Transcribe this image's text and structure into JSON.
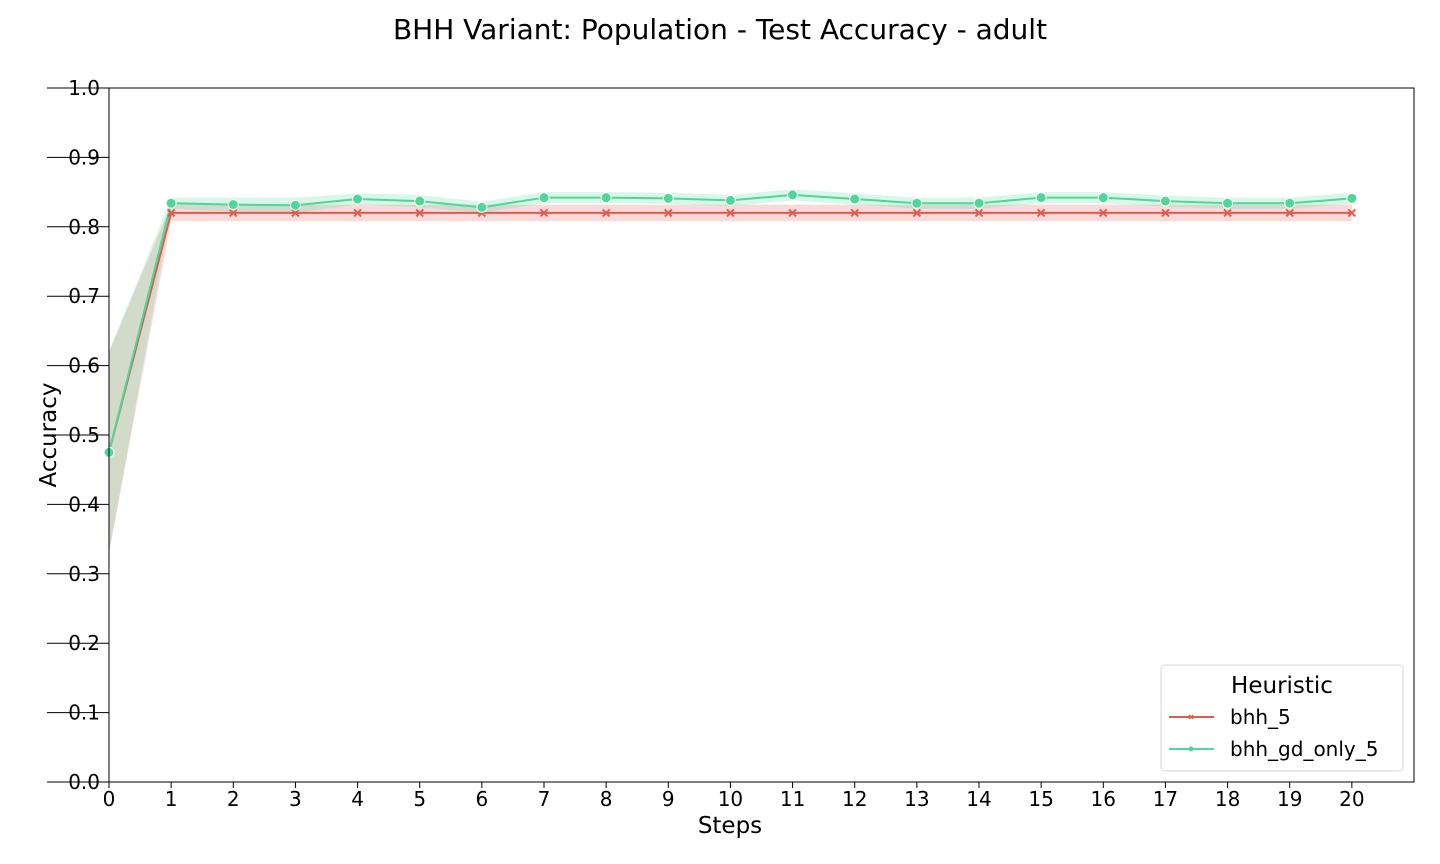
{
  "chart_data": {
    "type": "line",
    "title": "BHH Variant: Population - Test Accuracy - adult",
    "xlabel": "Steps",
    "ylabel": "Accuracy",
    "xlim": [
      0,
      21
    ],
    "ylim": [
      0.0,
      1.0
    ],
    "xticks": [
      "0",
      "1",
      "2",
      "3",
      "4",
      "5",
      "6",
      "7",
      "8",
      "9",
      "10",
      "11",
      "12",
      "13",
      "14",
      "15",
      "16",
      "17",
      "18",
      "19",
      "20"
    ],
    "yticks": [
      "0.0",
      "0.1",
      "0.2",
      "0.3",
      "0.4",
      "0.5",
      "0.6",
      "0.7",
      "0.8",
      "0.9",
      "1.0"
    ],
    "grid": false,
    "legend": {
      "title": "Heuristic",
      "placement": "bottom-right"
    },
    "x": [
      0,
      1,
      2,
      3,
      4,
      5,
      6,
      7,
      8,
      9,
      10,
      11,
      12,
      13,
      14,
      15,
      16,
      17,
      18,
      19,
      20
    ],
    "series": [
      {
        "name": "bhh_5",
        "color": "#e05a4f",
        "marker": "x",
        "values": [
          0.475,
          0.82,
          0.82,
          0.82,
          0.82,
          0.82,
          0.82,
          0.82,
          0.82,
          0.82,
          0.82,
          0.82,
          0.82,
          0.82,
          0.82,
          0.82,
          0.82,
          0.82,
          0.82,
          0.82,
          0.82
        ],
        "ci_low": [
          0.33,
          0.808,
          0.808,
          0.808,
          0.808,
          0.808,
          0.808,
          0.808,
          0.808,
          0.808,
          0.808,
          0.808,
          0.808,
          0.808,
          0.808,
          0.808,
          0.808,
          0.808,
          0.808,
          0.808,
          0.808
        ],
        "ci_high": [
          0.62,
          0.832,
          0.832,
          0.832,
          0.832,
          0.832,
          0.832,
          0.832,
          0.832,
          0.832,
          0.832,
          0.832,
          0.832,
          0.832,
          0.832,
          0.832,
          0.832,
          0.832,
          0.832,
          0.832,
          0.832
        ]
      },
      {
        "name": "bhh_gd_only_5",
        "color": "#4fd699",
        "marker": "o",
        "values": [
          0.475,
          0.834,
          0.832,
          0.831,
          0.84,
          0.837,
          0.828,
          0.842,
          0.842,
          0.841,
          0.838,
          0.846,
          0.84,
          0.834,
          0.834,
          0.842,
          0.842,
          0.837,
          0.834,
          0.834,
          0.841
        ],
        "ci_low": [
          0.33,
          0.826,
          0.822,
          0.82,
          0.832,
          0.828,
          0.82,
          0.834,
          0.834,
          0.833,
          0.83,
          0.838,
          0.832,
          0.826,
          0.826,
          0.834,
          0.834,
          0.829,
          0.826,
          0.826,
          0.833
        ],
        "ci_high": [
          0.62,
          0.842,
          0.842,
          0.842,
          0.848,
          0.846,
          0.836,
          0.85,
          0.85,
          0.849,
          0.846,
          0.854,
          0.848,
          0.842,
          0.842,
          0.85,
          0.85,
          0.845,
          0.842,
          0.842,
          0.849
        ]
      }
    ]
  }
}
